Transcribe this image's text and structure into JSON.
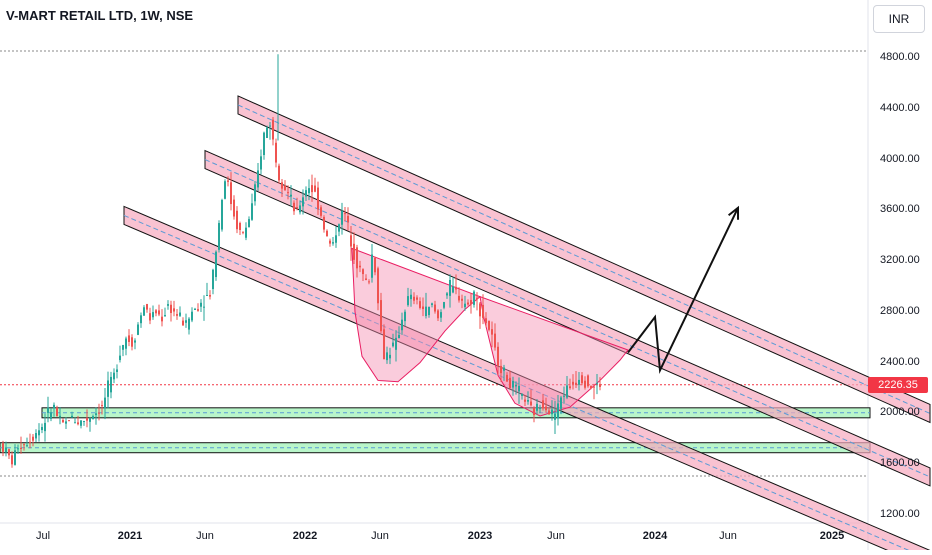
{
  "header": {
    "title": "V-MART RETAIL LTD, 1W, NSE",
    "currency_label": "INR"
  },
  "last_price": "2226.35",
  "colors": {
    "up": "#26a69a",
    "down": "#ef5350",
    "channel_fill": "#f7a8bd",
    "support_fill": "#b9f6ca",
    "price_tag": "#f23645",
    "dashed_line": "#5b9bd5"
  },
  "chart_data": {
    "type": "candlestick",
    "title": "V-MART RETAIL LTD, 1W, NSE",
    "y_axis": {
      "ticks": [
        "4800.00",
        "4400.00",
        "4000.00",
        "3600.00",
        "3200.00",
        "2800.00",
        "2400.00",
        "2000.00",
        "1600.00",
        "1200.00"
      ],
      "range": [
        1180,
        4860
      ]
    },
    "x_axis": {
      "ticks": [
        {
          "label": "Jul",
          "t": 0.0,
          "bold": false
        },
        {
          "label": "2021",
          "t": 1.0,
          "bold": true
        },
        {
          "label": "Jun",
          "t": 2.0,
          "bold": false
        },
        {
          "label": "2022",
          "t": 3.0,
          "bold": true
        },
        {
          "label": "Jun",
          "t": 4.0,
          "bold": false
        },
        {
          "label": "2023",
          "t": 5.0,
          "bold": true
        },
        {
          "label": "Jun",
          "t": 6.0,
          "bold": false
        },
        {
          "label": "2024",
          "t": 7.0,
          "bold": true
        },
        {
          "label": "Jun",
          "t": 8.0,
          "bold": false
        },
        {
          "label": "2025",
          "t": 9.0,
          "bold": true
        }
      ]
    },
    "price_anchors": [
      [
        0,
        1780
      ],
      [
        8,
        1700
      ],
      [
        14,
        1620
      ],
      [
        20,
        1750
      ],
      [
        26,
        1760
      ],
      [
        32,
        1800
      ],
      [
        38,
        1850
      ],
      [
        44,
        1900
      ],
      [
        50,
        2000
      ],
      [
        56,
        2050
      ],
      [
        60,
        1950
      ],
      [
        66,
        1900
      ],
      [
        72,
        1980
      ],
      [
        80,
        1930
      ],
      [
        88,
        1950
      ],
      [
        96,
        2000
      ],
      [
        104,
        2050
      ],
      [
        110,
        2200
      ],
      [
        116,
        2300
      ],
      [
        122,
        2500
      ],
      [
        128,
        2600
      ],
      [
        134,
        2550
      ],
      [
        140,
        2700
      ],
      [
        146,
        2850
      ],
      [
        152,
        2750
      ],
      [
        158,
        2800
      ],
      [
        164,
        2750
      ],
      [
        170,
        2850
      ],
      [
        176,
        2800
      ],
      [
        182,
        2750
      ],
      [
        188,
        2700
      ],
      [
        194,
        2800
      ],
      [
        200,
        2850
      ],
      [
        206,
        2900
      ],
      [
        212,
        2950
      ],
      [
        218,
        3300
      ],
      [
        224,
        3700
      ],
      [
        228,
        3900
      ],
      [
        232,
        3700
      ],
      [
        238,
        3500
      ],
      [
        244,
        3400
      ],
      [
        250,
        3500
      ],
      [
        256,
        3700
      ],
      [
        262,
        4000
      ],
      [
        266,
        4200
      ],
      [
        272,
        4300
      ],
      [
        276,
        4100
      ],
      [
        280,
        3900
      ],
      [
        286,
        3800
      ],
      [
        292,
        3700
      ],
      [
        298,
        3550
      ],
      [
        304,
        3700
      ],
      [
        310,
        3800
      ],
      [
        316,
        3750
      ],
      [
        322,
        3600
      ],
      [
        328,
        3400
      ],
      [
        334,
        3300
      ],
      [
        340,
        3500
      ],
      [
        346,
        3600
      ],
      [
        352,
        3400
      ],
      [
        358,
        3200
      ],
      [
        364,
        3100
      ],
      [
        370,
        3000
      ],
      [
        374,
        3250
      ],
      [
        378,
        3100
      ],
      [
        382,
        2700
      ],
      [
        386,
        2450
      ],
      [
        392,
        2500
      ],
      [
        398,
        2550
      ],
      [
        404,
        2750
      ],
      [
        410,
        2900
      ],
      [
        416,
        2900
      ],
      [
        422,
        2850
      ],
      [
        428,
        2800
      ],
      [
        434,
        2850
      ],
      [
        440,
        2750
      ],
      [
        446,
        2900
      ],
      [
        452,
        3000
      ],
      [
        458,
        2950
      ],
      [
        464,
        2900
      ],
      [
        470,
        2850
      ],
      [
        476,
        2950
      ],
      [
        480,
        2850
      ],
      [
        486,
        2750
      ],
      [
        492,
        2650
      ],
      [
        498,
        2450
      ],
      [
        504,
        2350
      ],
      [
        510,
        2250
      ],
      [
        516,
        2200
      ],
      [
        522,
        2150
      ],
      [
        528,
        2100
      ],
      [
        534,
        2000
      ],
      [
        540,
        2050
      ],
      [
        546,
        2100
      ],
      [
        552,
        2000
      ],
      [
        558,
        2000
      ],
      [
        564,
        2150
      ],
      [
        570,
        2200
      ],
      [
        576,
        2250
      ],
      [
        582,
        2300
      ],
      [
        588,
        2250
      ],
      [
        594,
        2200
      ],
      [
        600,
        2226
      ]
    ],
    "channels": [
      {
        "x1": 238,
        "y1": 4430,
        "x2": 930,
        "y2": 2000,
        "name": "upper"
      },
      {
        "x1": 205,
        "y1": 4000,
        "x2": 930,
        "y2": 1500,
        "name": "middle"
      },
      {
        "x1": 124,
        "y1": 3560,
        "x2": 930,
        "y2": 850,
        "name": "lower"
      }
    ],
    "supports": [
      {
        "x1": 42,
        "x2": 870,
        "y": 2005
      },
      {
        "x1": 0,
        "x2": 870,
        "y": 1730
      }
    ],
    "cup_shapes": [
      {
        "name": "left-cup",
        "points": [
          [
            352,
            3300
          ],
          [
            355,
            2800
          ],
          [
            362,
            2450
          ],
          [
            378,
            2260
          ],
          [
            398,
            2250
          ],
          [
            420,
            2400
          ],
          [
            445,
            2650
          ],
          [
            465,
            2820
          ],
          [
            480,
            2920
          ]
        ]
      },
      {
        "name": "right-cup",
        "points": [
          [
            480,
            2920
          ],
          [
            484,
            2750
          ],
          [
            498,
            2300
          ],
          [
            515,
            2080
          ],
          [
            540,
            1980
          ],
          [
            570,
            2050
          ],
          [
            600,
            2260
          ],
          [
            620,
            2420
          ],
          [
            628,
            2500
          ]
        ]
      }
    ],
    "projection": [
      [
        628,
        2480
      ],
      [
        655,
        2760
      ],
      [
        660,
        2340
      ],
      [
        738,
        3620
      ]
    ]
  }
}
